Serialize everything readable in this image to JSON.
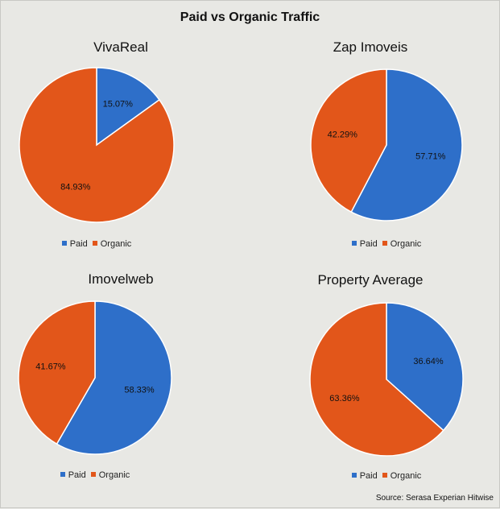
{
  "title": "Paid vs Organic Traffic",
  "source": "Source: Serasa Experian Hitwise",
  "colors": {
    "paid": "#2e6fc9",
    "organic": "#e2561a"
  },
  "legend": [
    "Paid",
    "Organic"
  ],
  "chart_data": [
    {
      "type": "pie",
      "title": "VivaReal",
      "labels": [
        "Paid",
        "Organic"
      ],
      "values": [
        15.07,
        84.93
      ],
      "value_labels": [
        "15.07%",
        "84.93%"
      ],
      "legend_position": "bottom"
    },
    {
      "type": "pie",
      "title": "Zap Imoveis",
      "labels": [
        "Paid",
        "Organic"
      ],
      "values": [
        57.71,
        42.29
      ],
      "value_labels": [
        "57.71%",
        "42.29%"
      ],
      "legend_position": "bottom"
    },
    {
      "type": "pie",
      "title": "Imovelweb",
      "labels": [
        "Paid",
        "Organic"
      ],
      "values": [
        58.33,
        41.67
      ],
      "value_labels": [
        "58.33%",
        "41.67%"
      ],
      "legend_position": "bottom"
    },
    {
      "type": "pie",
      "title": "Property Average",
      "labels": [
        "Paid",
        "Organic"
      ],
      "values": [
        36.64,
        63.36
      ],
      "value_labels": [
        "36.64%",
        "63.36%"
      ],
      "legend_position": "bottom"
    }
  ]
}
